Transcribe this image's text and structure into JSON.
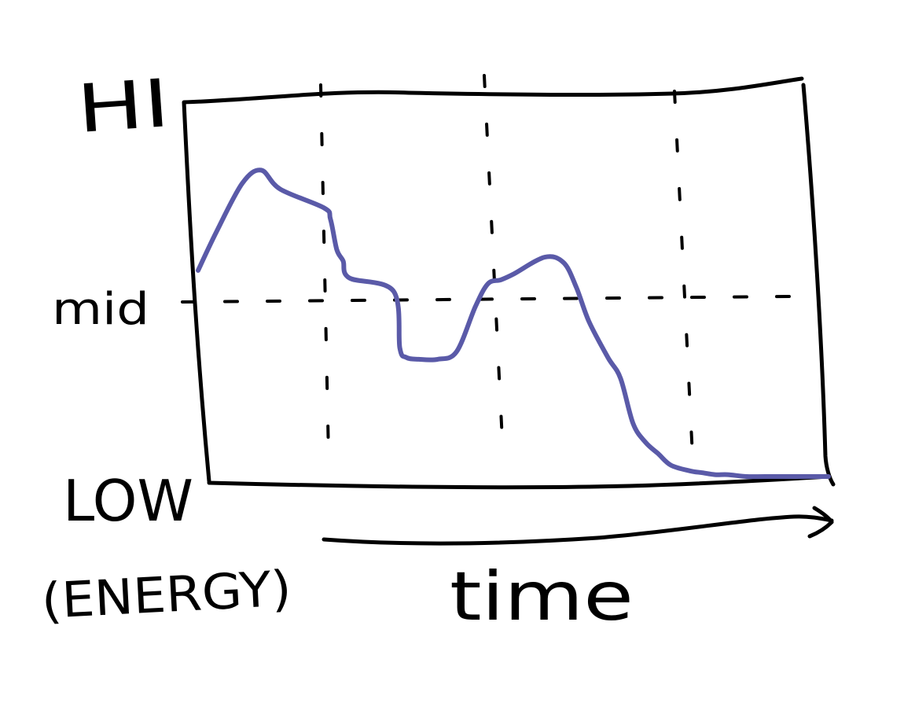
{
  "chart_data": {
    "type": "line",
    "title": "",
    "xlabel": "time",
    "ylabel": "(ENERGY)",
    "y_tick_labels": [
      "HI",
      "mid",
      "LOW"
    ],
    "ylim": [
      0,
      2
    ],
    "xlim": [
      0,
      1
    ],
    "grid": true,
    "line_color": "#5a5aa8",
    "axis_color": "#000000",
    "series": [
      {
        "x": [
          0,
          0.03,
          0.07,
          0.1,
          0.13,
          0.2,
          0.21,
          0.22,
          0.23,
          0.24,
          0.31,
          0.32,
          0.33,
          0.35,
          0.38,
          0.41,
          0.44,
          0.46,
          0.48,
          0.5,
          0.55,
          0.58,
          0.6,
          0.62,
          0.65,
          0.67,
          0.69,
          0.71,
          0.73,
          0.75,
          0.78,
          0.8,
          0.82,
          0.84,
          0.87,
          0.9,
          0.95,
          1.0
        ],
        "y": [
          1.09,
          1.3,
          1.55,
          1.62,
          1.52,
          1.42,
          1.36,
          1.2,
          1.14,
          1.05,
          0.98,
          0.68,
          0.63,
          0.62,
          0.62,
          0.66,
          0.9,
          1.02,
          1.04,
          1.07,
          1.16,
          1.13,
          1.0,
          0.82,
          0.63,
          0.52,
          0.28,
          0.18,
          0.12,
          0.06,
          0.03,
          0.02,
          0.01,
          0.01,
          0.0,
          0.0,
          0.0,
          0.0
        ]
      }
    ]
  }
}
